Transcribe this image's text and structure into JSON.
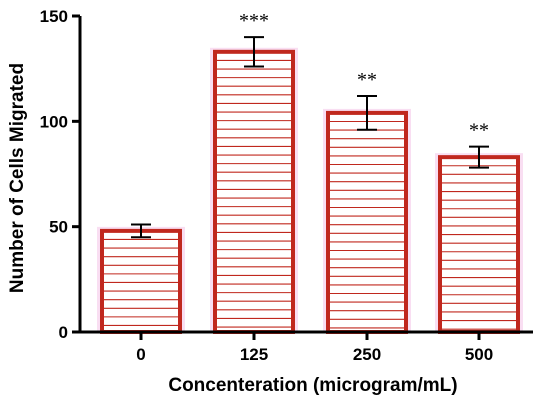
{
  "chart_data": {
    "type": "bar",
    "categories": [
      "0",
      "125",
      "250",
      "500"
    ],
    "values": [
      48,
      133,
      104,
      83
    ],
    "errors": [
      3,
      7,
      8,
      5
    ],
    "significance": [
      "",
      "***",
      "**",
      "**"
    ],
    "title": "",
    "xlabel": "Concenteration (microgram/mL)",
    "ylabel": "Number of Cells Migrated",
    "ylim": [
      0,
      150
    ],
    "yticks": [
      0,
      50,
      100,
      150
    ],
    "grid": false,
    "bar_style": "horizontal hatch",
    "colors": {
      "bar_edge": "#c0281e",
      "hatch": "#c0281e",
      "glow": "#f4c2e8"
    }
  }
}
